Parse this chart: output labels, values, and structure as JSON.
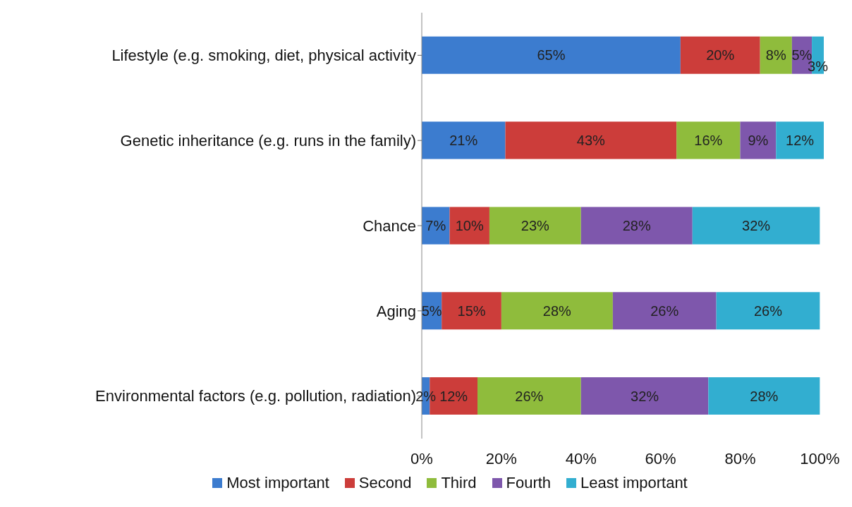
{
  "chart_data": {
    "type": "bar",
    "orientation": "horizontal",
    "stacked": true,
    "categories": [
      "Lifestyle (e.g. smoking, diet, physical activity",
      "Genetic inheritance (e.g. runs in the family)",
      "Chance",
      "Aging",
      "Environmental factors (e.g. pollution, radiation)"
    ],
    "series": [
      {
        "name": "Most important",
        "color": "#3c7ccf",
        "values": [
          65,
          21,
          7,
          5,
          2
        ],
        "value_labels": [
          "65%",
          "21%",
          "7%",
          "5%",
          "2%"
        ]
      },
      {
        "name": "Second",
        "color": "#cc3d3a",
        "values": [
          20,
          43,
          10,
          15,
          12
        ],
        "value_labels": [
          "20%",
          "43%",
          "10%",
          "15%",
          "12%"
        ]
      },
      {
        "name": "Third",
        "color": "#8fbc3c",
        "values": [
          8,
          16,
          23,
          28,
          26
        ],
        "value_labels": [
          "8%",
          "16%",
          "23%",
          "28%",
          "26%"
        ]
      },
      {
        "name": "Fourth",
        "color": "#7e57ac",
        "values": [
          5,
          9,
          28,
          26,
          32
        ],
        "value_labels": [
          "5%",
          "9%",
          "28%",
          "26%",
          "32%"
        ]
      },
      {
        "name": "Least important",
        "color": "#32aed0",
        "values": [
          3,
          12,
          32,
          26,
          28
        ],
        "value_labels": [
          "3%",
          "12%",
          "32%",
          "26%",
          "28%"
        ]
      }
    ],
    "xlim": [
      0,
      101
    ],
    "xticks": [
      {
        "value": 0,
        "label": "0%"
      },
      {
        "value": 20,
        "label": "20%"
      },
      {
        "value": 40,
        "label": "40%"
      },
      {
        "value": 60,
        "label": "60%"
      },
      {
        "value": 80,
        "label": "80%"
      },
      {
        "value": 100,
        "label": "100%"
      }
    ],
    "legend": "bottom",
    "grid": false
  }
}
